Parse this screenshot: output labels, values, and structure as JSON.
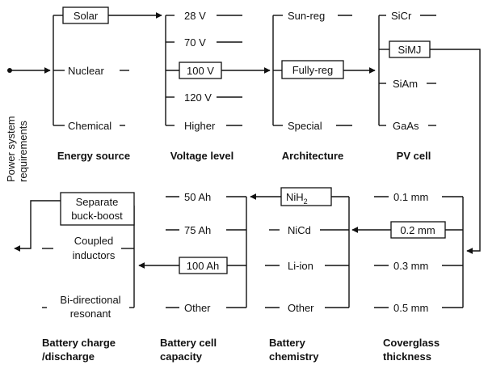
{
  "start_label": {
    "line1": "Power system",
    "line2": "requirements"
  },
  "energy_source": {
    "heading": "Energy source",
    "options": [
      "Solar",
      "Nuclear",
      "Chemical"
    ],
    "selected": "Solar"
  },
  "voltage_level": {
    "heading": "Voltage level",
    "options": [
      "28 V",
      "70 V",
      "100 V",
      "120 V",
      "Higher"
    ],
    "selected": "100 V"
  },
  "architecture": {
    "heading": "Architecture",
    "options": [
      "Sun-reg",
      "Fully-reg",
      "Special"
    ],
    "selected": "Fully-reg"
  },
  "pv_cell": {
    "heading": "PV cell",
    "options": [
      "SiCr",
      "SiMJ",
      "SiAm",
      "GaAs"
    ],
    "selected": "SiMJ"
  },
  "coverglass": {
    "heading_line1": "Coverglass",
    "heading_line2": "thickness",
    "options": [
      "0.1 mm",
      "0.2 mm",
      "0.3 mm",
      "0.5 mm"
    ],
    "selected": "0.2 mm"
  },
  "battery_chemistry": {
    "heading_line1": "Battery",
    "heading_line2": "chemistry",
    "options": [
      {
        "main": "NiH",
        "sub": "2"
      },
      {
        "main": "NiCd",
        "sub": ""
      },
      {
        "main": "Li-ion",
        "sub": ""
      },
      {
        "main": "Other",
        "sub": ""
      }
    ],
    "selected": "NiH2"
  },
  "battery_capacity": {
    "heading_line1": "Battery cell",
    "heading_line2": "capacity",
    "options": [
      "50 Ah",
      "75 Ah",
      "100 Ah",
      "Other"
    ],
    "selected": "100 Ah"
  },
  "charge_discharge": {
    "heading_line1": "Battery charge",
    "heading_line2": "/discharge",
    "options": [
      {
        "line1": "Separate",
        "line2": "buck-boost"
      },
      {
        "line1": "Coupled",
        "line2": "inductors"
      },
      {
        "line1": "Bi-directional",
        "line2": "resonant"
      }
    ],
    "selected": "Separate buck-boost"
  }
}
